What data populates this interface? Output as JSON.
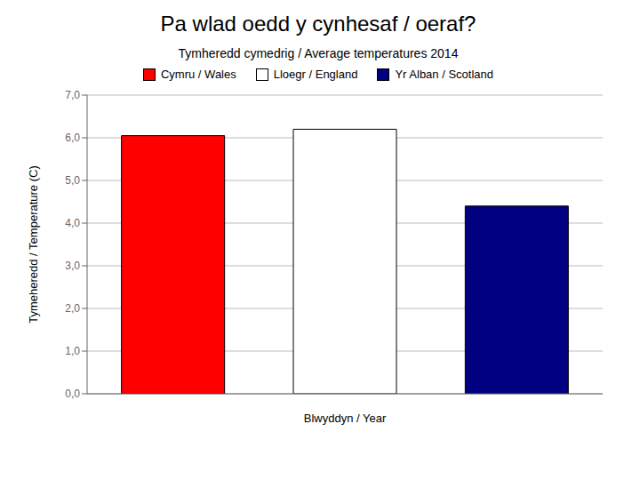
{
  "chart_data": {
    "type": "bar",
    "title": "Pa wlad oedd y cynhesaf / oeraf?",
    "subtitle": "Tymheredd cymedrig / Average temperatures 2014",
    "xlabel": "Blwyddyn / Year",
    "ylabel": "Tymeheredd / Temperature (C)",
    "categories": [
      "Cymru / Wales",
      "Lloegr / England",
      "Yr Alban / Scotland"
    ],
    "values": [
      6.05,
      6.2,
      4.4
    ],
    "colors": [
      "#FF0000",
      "#FFFFFF",
      "#000080"
    ],
    "ylim": [
      0.0,
      7.0
    ],
    "yticks": [
      {
        "value": 0.0,
        "label": "0,0"
      },
      {
        "value": 1.0,
        "label": "1,0"
      },
      {
        "value": 2.0,
        "label": "2,0"
      },
      {
        "value": 3.0,
        "label": "3,0"
      },
      {
        "value": 4.0,
        "label": "4,0"
      },
      {
        "value": 5.0,
        "label": "5,0"
      },
      {
        "value": 6.0,
        "label": "6,0"
      },
      {
        "value": 7.0,
        "label": "7,0"
      }
    ],
    "grid": true,
    "legend": "top",
    "tick_labels": "y"
  }
}
